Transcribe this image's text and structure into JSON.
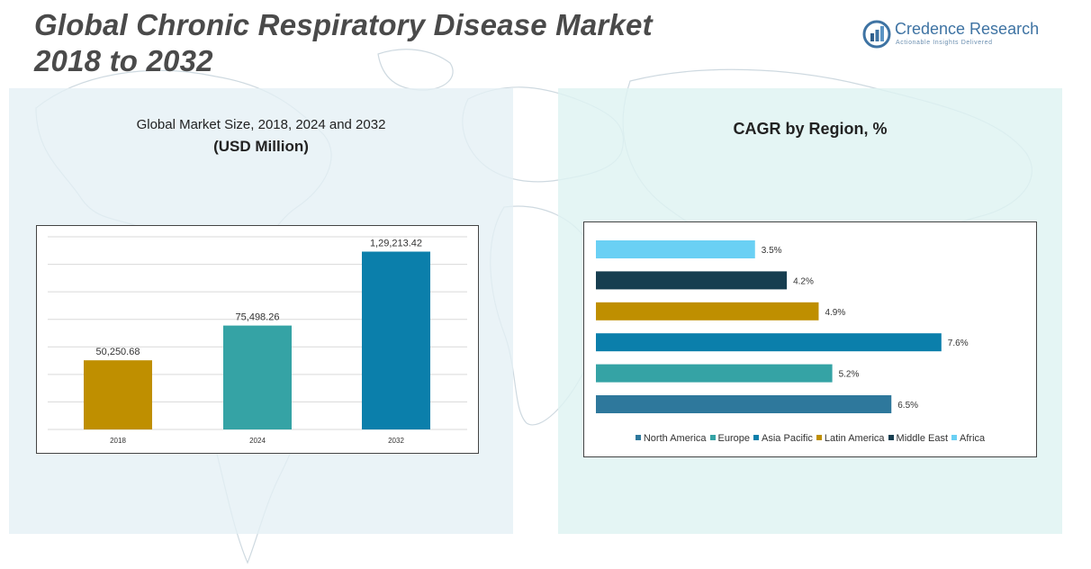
{
  "header": {
    "title_line1": "Global Chronic Respiratory Disease Market",
    "title_line2": "2018 to 2032"
  },
  "logo": {
    "name": "Credence Research",
    "tagline": "Actionable Insights Delivered"
  },
  "left_panel": {
    "title": "Global Market Size, 2018, 2024 and 2032",
    "subtitle": "(USD Million)"
  },
  "right_panel": {
    "title": "CAGR by Region, %"
  },
  "colors": {
    "gold": "#bf8f00",
    "teal": "#35a3a5",
    "blue": "#0b7fab",
    "navy": "#173e50",
    "sky": "#6ad0f4",
    "steel": "#2e789c"
  },
  "chart_data": [
    {
      "type": "bar",
      "title": "Global Market Size, 2018, 2024 and 2032",
      "ylabel": "(USD Million)",
      "categories": [
        "2018",
        "2024",
        "2032"
      ],
      "values": [
        50250.68,
        75498.26,
        129213.42
      ],
      "labels": [
        "50,250.68",
        "75,498.26",
        "1,29,213.42"
      ],
      "colors": [
        "#bf8f00",
        "#35a3a5",
        "#0b7fab"
      ],
      "ylim": [
        0,
        140000
      ],
      "grid": true
    },
    {
      "type": "bar",
      "orientation": "horizontal",
      "title": "CAGR by Region, %",
      "categories": [
        "Africa",
        "Middle East",
        "Latin America",
        "Asia Pacific",
        "Europe",
        "North America"
      ],
      "values": [
        3.5,
        4.2,
        4.9,
        7.6,
        5.2,
        6.5
      ],
      "labels": [
        "3.5%",
        "4.2%",
        "4.9%",
        "7.6%",
        "5.2%",
        "6.5%"
      ],
      "colors": [
        "#6ad0f4",
        "#173e50",
        "#bf8f00",
        "#0b7fab",
        "#35a3a5",
        "#2e789c"
      ],
      "xlim": [
        0,
        8
      ],
      "legend": [
        "North America",
        "Europe",
        "Asia Pacific",
        "Latin America",
        "Middle East",
        "Africa"
      ],
      "legend_colors": [
        "#2e789c",
        "#35a3a5",
        "#0b7fab",
        "#bf8f00",
        "#173e50",
        "#6ad0f4"
      ],
      "legend_position": "bottom"
    }
  ]
}
